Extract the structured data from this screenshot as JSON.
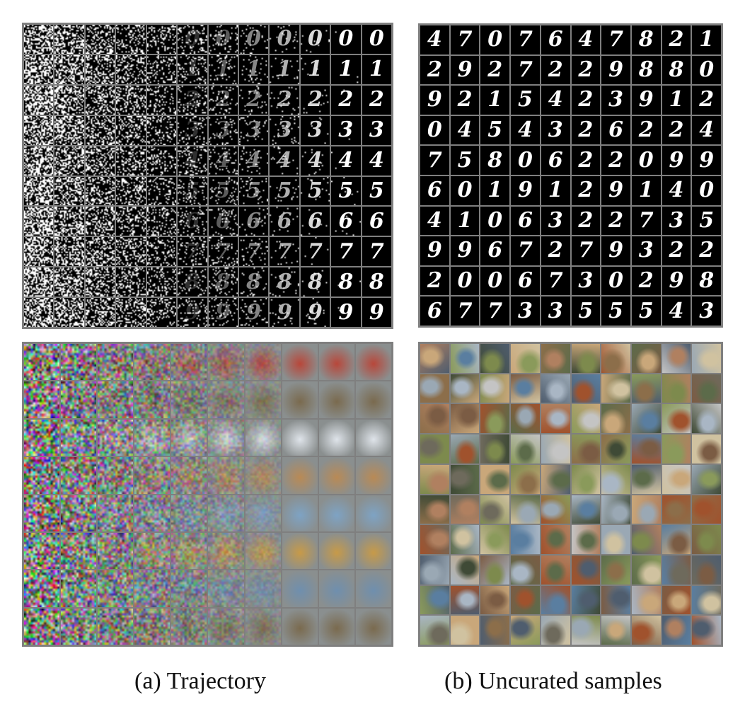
{
  "figure": {
    "captions": {
      "trajectory": "(a) Trajectory",
      "uncurated": "(b) Uncurated samples"
    },
    "mnist_trajectory": {
      "rows": 10,
      "steps": 12,
      "final_digits": [
        "0",
        "1",
        "2",
        "3",
        "4",
        "5",
        "6",
        "7",
        "8",
        "9"
      ]
    },
    "mnist_samples": {
      "rows": [
        [
          "4",
          "7",
          "0",
          "7",
          "6",
          "4",
          "7",
          "8",
          "2",
          "1"
        ],
        [
          "2",
          "9",
          "2",
          "7",
          "2",
          "2",
          "9",
          "8",
          "8",
          "0"
        ],
        [
          "9",
          "2",
          "1",
          "5",
          "4",
          "2",
          "3",
          "9",
          "1",
          "2"
        ],
        [
          "0",
          "4",
          "5",
          "4",
          "3",
          "2",
          "6",
          "2",
          "2",
          "4"
        ],
        [
          "7",
          "5",
          "8",
          "0",
          "6",
          "2",
          "2",
          "0",
          "9",
          "9"
        ],
        [
          "6",
          "0",
          "1",
          "9",
          "1",
          "2",
          "9",
          "1",
          "4",
          "0"
        ],
        [
          "4",
          "1",
          "0",
          "6",
          "3",
          "2",
          "2",
          "7",
          "3",
          "5"
        ],
        [
          "9",
          "9",
          "6",
          "7",
          "2",
          "7",
          "9",
          "3",
          "2",
          "2"
        ],
        [
          "2",
          "0",
          "0",
          "6",
          "7",
          "3",
          "0",
          "2",
          "9",
          "8"
        ],
        [
          "6",
          "7",
          "7",
          "3",
          "3",
          "5",
          "5",
          "5",
          "4",
          "3"
        ]
      ]
    },
    "cifar_trajectory": {
      "rows": 8,
      "steps": 10,
      "final_colors": [
        "#b8473a",
        "#7a6a4e",
        "#dfe4ea",
        "#b98a55",
        "#7ea3c4",
        "#c79a48",
        "#6f8fae",
        "#7a6a4e"
      ]
    },
    "cifar_samples": {
      "rows": 10,
      "cols": 10,
      "palette": [
        "#6e6a5c",
        "#8a9a5b",
        "#a9b6c4",
        "#7b5c44",
        "#c9a77a",
        "#5c6b4a",
        "#9aa8b4",
        "#b08060",
        "#4f5d6e",
        "#d0c2a0",
        "#7d8a4d",
        "#a0522d",
        "#5a7ea0",
        "#c4c4c4",
        "#8c6e4a",
        "#3f4a36"
      ]
    }
  }
}
